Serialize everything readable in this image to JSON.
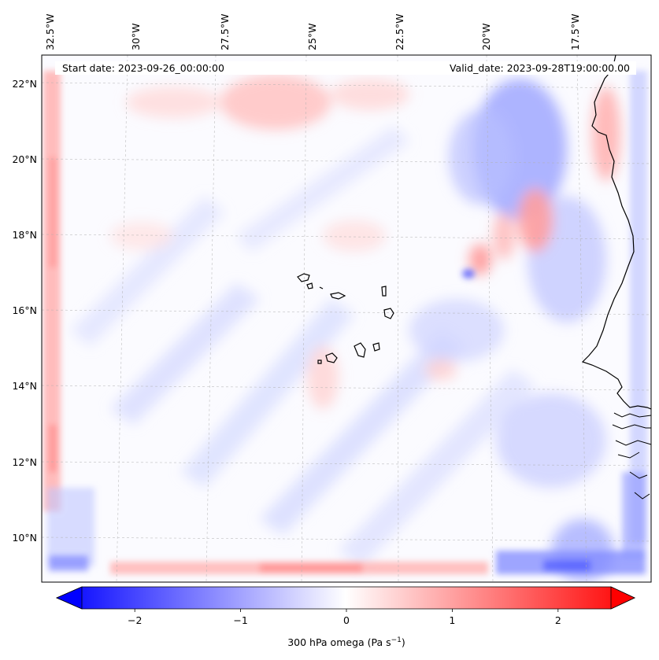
{
  "header": {
    "start_date": "Start date: 2023-09-26_00:00:00",
    "valid_date": "Valid_date: 2023-09-28T19:00:00.00"
  },
  "lon_labels": [
    "32.5°W",
    "30°W",
    "27.5°W",
    "25°W",
    "22.5°W",
    "20°W",
    "17.5°W"
  ],
  "lat_labels": [
    "22°N",
    "20°N",
    "18°N",
    "16°N",
    "14°N",
    "12°N",
    "10°N"
  ],
  "colorbar": {
    "label": "300 hPa omega (Pa s",
    "label_exp": "−1",
    "label_close": ")",
    "ticks": [
      "−2",
      "−1",
      "0",
      "1",
      "2"
    ],
    "range": [
      -2.75,
      2.75
    ],
    "colormap": "bwr",
    "low_color": "#0000ff",
    "mid_color": "#ffffff",
    "high_color": "#ff0000"
  },
  "map": {
    "variable": "300 hPa omega",
    "land_outline_color": "#000000",
    "gridline_style": "dashed-grey"
  }
}
